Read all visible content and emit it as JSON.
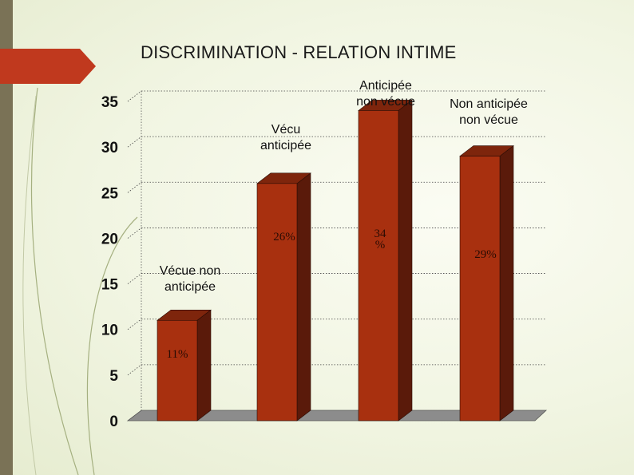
{
  "slide": {
    "title": "DISCRIMINATION - RELATION INTIME",
    "colors": {
      "accent_tab": "#c0391e",
      "left_band": "#7a7256"
    }
  },
  "chart_data": {
    "type": "bar",
    "title": "DISCRIMINATION - RELATION INTIME",
    "categories": [
      "Vécue non anticipée",
      "Vécu anticipée",
      "Anticipée non vécue",
      "Non anticipée non vécue"
    ],
    "category_label_lines": [
      [
        "Vécue non",
        "anticipée"
      ],
      [
        "Vécu",
        "anticipée"
      ],
      [
        "Anticipée",
        "non vécue"
      ],
      [
        "Non anticipée",
        "non vécue"
      ]
    ],
    "values": [
      11,
      26,
      34,
      29
    ],
    "data_label_lines": [
      [
        "11%"
      ],
      [
        "26%"
      ],
      [
        "34",
        "%"
      ],
      [
        "29%"
      ]
    ],
    "ylim": [
      0,
      35
    ],
    "yticks": [
      0,
      5,
      10,
      15,
      20,
      25,
      30,
      35
    ],
    "grid": true,
    "bar_color": "#a8300f",
    "bar_side_color": "#5a1a0a",
    "bar_top_color": "#7e250c"
  }
}
